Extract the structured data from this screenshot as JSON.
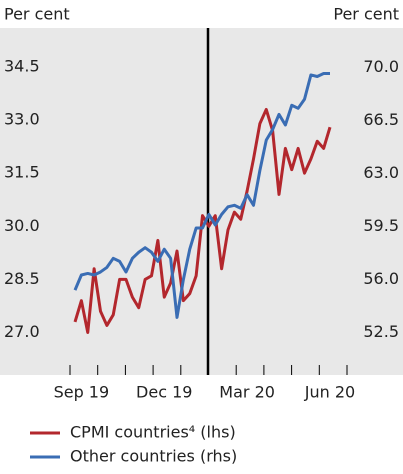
{
  "chart_data": {
    "type": "line",
    "y_label": "Per cent",
    "y2_label": "Per cent",
    "categories": [
      null,
      "Sep 19",
      null,
      null,
      null,
      null,
      null,
      null,
      null,
      null,
      null,
      null,
      null,
      null,
      "Dec 19",
      null,
      null,
      null,
      null,
      null,
      null,
      null,
      null,
      null,
      null,
      null,
      null,
      "Mar 20",
      null,
      null,
      null,
      null,
      null,
      null,
      null,
      null,
      null,
      null,
      null,
      null,
      "Jun 20"
    ],
    "series": [
      {
        "name": "CPMI countries⁴ (lhs)",
        "color": "#b3272d",
        "axis": "y",
        "values": [
          27.3,
          27.9,
          27.0,
          28.8,
          27.6,
          27.2,
          27.5,
          28.5,
          28.5,
          28.0,
          27.7,
          28.5,
          28.6,
          29.6,
          28.0,
          28.4,
          29.3,
          27.9,
          28.1,
          28.6,
          30.3,
          30.0,
          30.3,
          28.8,
          29.9,
          30.4,
          30.2,
          31.0,
          31.9,
          32.9,
          33.3,
          32.7,
          30.9,
          32.2,
          31.6,
          32.2,
          31.5,
          31.9,
          32.4,
          32.2,
          32.8
        ]
      },
      {
        "name": "Other countries (rhs)",
        "color": "#3a6db4",
        "axis": "y2",
        "values": [
          55.3,
          56.3,
          56.4,
          56.3,
          56.5,
          56.8,
          57.4,
          57.2,
          56.5,
          57.4,
          57.8,
          58.1,
          57.8,
          57.2,
          58.0,
          57.4,
          53.5,
          56.0,
          58.0,
          59.4,
          59.4,
          60.3,
          59.6,
          60.3,
          60.8,
          60.9,
          60.7,
          61.6,
          60.9,
          63.2,
          65.2,
          65.9,
          66.9,
          66.2,
          67.5,
          67.3,
          67.9,
          69.5,
          69.4,
          69.6,
          69.6
        ]
      }
    ],
    "ylim": [
      25.8,
      35.6
    ],
    "yticks": [
      {
        "value": 27,
        "label": "27.0"
      },
      28.5,
      {
        "value": 30,
        "label": "30.0"
      },
      31.5,
      {
        "value": 33,
        "label": "33.0"
      },
      34.5
    ],
    "y2lim": [
      49.7,
      72.6
    ],
    "y2ticks": [
      52.5,
      {
        "value": 56,
        "label": "56.0"
      },
      59.5,
      {
        "value": 63,
        "label": "63.0"
      },
      66.5,
      {
        "value": 70,
        "label": "70.0"
      }
    ]
  }
}
